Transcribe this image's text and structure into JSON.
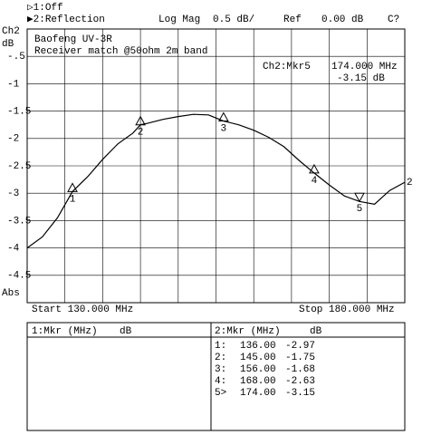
{
  "header": {
    "channel1": "▷1:Off",
    "channel2": "▶2:Reflection",
    "format": "Log Mag",
    "scale": "0.5 dB/",
    "ref_label": "Ref",
    "ref_value": "0.00 dB",
    "status": "C?",
    "channel": "Ch2",
    "unit": "dB"
  },
  "chart_data": {
    "type": "line",
    "annotations": [
      "Baofeng UV-3R",
      "Receiver match @50ohm 2m band"
    ],
    "active_marker": {
      "name": "Ch2:Mkr5",
      "frequency": "174.000 MHz",
      "value": "-3.15 dB"
    },
    "x": [
      130,
      132,
      134,
      136,
      138,
      140,
      142,
      144,
      145,
      146,
      148,
      150,
      152,
      154,
      156,
      158,
      160,
      162,
      164,
      166,
      168,
      170,
      172,
      174,
      176,
      178,
      180
    ],
    "series": [
      {
        "name": "2",
        "color": "#000000",
        "values": [
          -4.0,
          -3.8,
          -3.45,
          -2.97,
          -2.7,
          -2.38,
          -2.1,
          -1.9,
          -1.75,
          -1.72,
          -1.65,
          -1.6,
          -1.56,
          -1.57,
          -1.68,
          -1.75,
          -1.85,
          -1.98,
          -2.15,
          -2.4,
          -2.63,
          -2.85,
          -3.05,
          -3.15,
          -3.2,
          -2.95,
          -2.8
        ]
      }
    ],
    "markers": [
      {
        "label": "1",
        "x": 136,
        "value": -2.97
      },
      {
        "label": "2",
        "x": 145,
        "value": -1.75
      },
      {
        "label": "3",
        "x": 156,
        "value": -1.68
      },
      {
        "label": "4",
        "x": 168,
        "value": -2.63
      },
      {
        "label": "5",
        "x": 174,
        "value": -3.15
      }
    ],
    "xlim": [
      130,
      180
    ],
    "xticks": [
      130,
      135,
      140,
      145,
      150,
      155,
      160,
      165,
      170,
      175,
      180
    ],
    "ylim": [
      -5,
      0
    ],
    "yticks": [
      {
        "value": -0.5,
        "label": "-.5"
      },
      -1,
      -1.5,
      -2,
      -2.5,
      -3,
      -3.5,
      -4,
      -4.5
    ],
    "y_unit": "Abs",
    "grid": true,
    "start": "Start 130.000 MHz",
    "stop": "Stop 180.000 MHz"
  },
  "table": {
    "left_header": [
      "1:Mkr (MHz)",
      "dB"
    ],
    "right_header": [
      "2:Mkr (MHz)",
      "dB"
    ],
    "rows": [
      [
        "1:",
        "136.00",
        "-2.97"
      ],
      [
        "2:",
        "145.00",
        "-1.75"
      ],
      [
        "3:",
        "156.00",
        "-1.68"
      ],
      [
        "4:",
        "168.00",
        "-2.63"
      ],
      [
        "5>",
        "174.00",
        "-3.15"
      ]
    ]
  }
}
